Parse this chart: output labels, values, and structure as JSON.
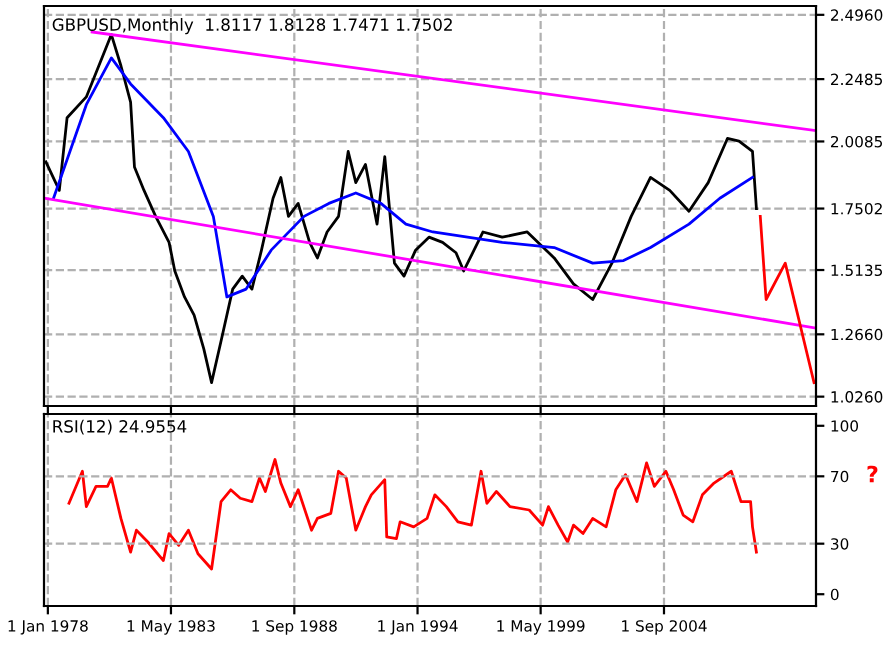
{
  "chart_data": [
    {
      "type": "line",
      "title": "GBPUSD,Monthly  1.8117 1.8128 1.7471 1.7502",
      "xlim": [
        "1977-11",
        "2011-04"
      ],
      "ylim": [
        0.99,
        2.53
      ],
      "xticks": [
        {
          "value": "1978-01-01",
          "label": null
        },
        {
          "value": "1983-05-01",
          "label": null
        },
        {
          "value": "1988-09-01",
          "label": null
        },
        {
          "value": "1994-01-01",
          "label": null
        },
        {
          "value": "1999-05-01",
          "label": null
        },
        {
          "value": "2004-09-01",
          "label": null
        }
      ],
      "yticks": [
        {
          "value": 2.496,
          "label": "2.4960"
        },
        {
          "value": 2.2485,
          "label": "2.2485"
        },
        {
          "value": 2.0085,
          "label": "2.0085"
        },
        {
          "value": 1.7502,
          "label": "1.7502"
        },
        {
          "value": 1.5135,
          "label": "1.5135"
        },
        {
          "value": 1.266,
          "label": "1.2660"
        },
        {
          "value": 1.026,
          "label": "1.0260"
        }
      ],
      "tick_labels": "y",
      "grid": true,
      "series": [
        {
          "color": "#000000",
          "x": [
            "1977-12",
            "1978-07",
            "1978-11",
            "1979-09",
            "1980-10",
            "1981-03",
            "1981-08",
            "1981-10",
            "1982-03",
            "1982-09",
            "1983-04",
            "1983-07",
            "1983-12",
            "1984-05",
            "1984-10",
            "1985-02",
            "1985-07",
            "1986-01",
            "1986-06",
            "1986-11",
            "1987-04",
            "1987-10",
            "1988-02",
            "1988-06",
            "1988-11",
            "1989-05",
            "1989-09",
            "1990-02",
            "1990-08",
            "1991-01",
            "1991-05",
            "1991-10",
            "1992-04",
            "1992-08",
            "1993-01",
            "1993-06",
            "1993-12",
            "1994-07",
            "1995-02",
            "1995-09",
            "1996-01",
            "1996-11",
            "1997-09",
            "1998-10",
            "1999-12",
            "2000-10",
            "2001-08",
            "2002-06",
            "2003-04",
            "2004-02",
            "2004-12",
            "2005-10",
            "2006-08",
            "2007-06",
            "2007-12",
            "2008-07",
            "2008-09"
          ],
          "values": [
            1.93,
            1.82,
            2.1,
            2.18,
            2.42,
            2.3,
            2.16,
            1.91,
            1.82,
            1.72,
            1.62,
            1.51,
            1.41,
            1.34,
            1.21,
            1.08,
            1.24,
            1.44,
            1.49,
            1.44,
            1.59,
            1.79,
            1.87,
            1.72,
            1.77,
            1.62,
            1.56,
            1.66,
            1.72,
            1.97,
            1.85,
            1.92,
            1.69,
            1.95,
            1.54,
            1.49,
            1.59,
            1.64,
            1.62,
            1.58,
            1.51,
            1.66,
            1.64,
            1.66,
            1.56,
            1.46,
            1.4,
            1.54,
            1.72,
            1.87,
            1.82,
            1.74,
            1.85,
            2.02,
            2.01,
            1.97,
            1.75
          ]
        },
        {
          "color": "#0000ff",
          "x": [
            "1978-04",
            "1979-09",
            "1980-10",
            "1981-08",
            "1983-01",
            "1984-02",
            "1985-03",
            "1985-10",
            "1986-08",
            "1987-09",
            "1989-02",
            "1990-03",
            "1991-05",
            "1992-06",
            "1993-07",
            "1994-09",
            "1997-09",
            "1999-12",
            "2001-08",
            "2002-12",
            "2004-02",
            "2005-10",
            "2007-02",
            "2008-07"
          ],
          "values": [
            1.79,
            2.15,
            2.33,
            2.23,
            2.1,
            1.97,
            1.72,
            1.41,
            1.44,
            1.59,
            1.72,
            1.77,
            1.81,
            1.77,
            1.69,
            1.66,
            1.62,
            1.6,
            1.54,
            1.55,
            1.6,
            1.69,
            1.79,
            1.87
          ]
        },
        {
          "color": "#ff00ff",
          "x": [
            "1979-12",
            "2011-04"
          ],
          "values": [
            2.43,
            2.05
          ]
        },
        {
          "color": "#ff00ff",
          "x": [
            "1977-11",
            "2011-04"
          ],
          "values": [
            1.79,
            1.29
          ]
        },
        {
          "color": "#ff0000",
          "x": [
            "2008-11",
            "2009-02",
            "2009-12",
            "2011-03"
          ],
          "values": [
            1.72,
            1.4,
            1.54,
            1.08
          ]
        }
      ]
    },
    {
      "type": "line",
      "title": "RSI(12) 24.9554",
      "xlim": [
        "1977-11",
        "2011-04"
      ],
      "ylim": [
        -7,
        107
      ],
      "xticks": [
        {
          "value": "1978-01-01",
          "label": "1 Jan 1978"
        },
        {
          "value": "1983-05-01",
          "label": "1 May 1983"
        },
        {
          "value": "1988-09-01",
          "label": "1 Sep 1988"
        },
        {
          "value": "1994-01-01",
          "label": "1 Jan 1994"
        },
        {
          "value": "1999-05-01",
          "label": "1 May 1999"
        },
        {
          "value": "2004-09-01",
          "label": "1 Sep 2004"
        }
      ],
      "yticks": [
        100,
        70,
        30,
        0
      ],
      "grid": "x",
      "ref_lines": [
        {
          "axis": "y",
          "value": 70,
          "color": "#b0b0b0",
          "line_style": "dashed"
        },
        {
          "axis": "y",
          "value": 30,
          "color": "#b0b0b0",
          "line_style": "dashed"
        }
      ],
      "annotations": [
        "?"
      ],
      "series": [
        {
          "color": "#ff0000",
          "x": [
            "1978-12",
            "1979-07",
            "1979-09",
            "1980-02",
            "1980-08",
            "1980-10",
            "1981-03",
            "1981-08",
            "1981-11",
            "1982-05",
            "1983-01",
            "1983-04",
            "1983-09",
            "1984-02",
            "1984-07",
            "1985-02",
            "1985-07",
            "1985-12",
            "1986-05",
            "1986-11",
            "1987-03",
            "1987-06",
            "1987-11",
            "1988-02",
            "1988-07",
            "1988-11",
            "1989-06",
            "1989-09",
            "1990-04",
            "1990-08",
            "1990-12",
            "1991-05",
            "1991-10",
            "1992-01",
            "1992-08",
            "1992-09",
            "1993-02",
            "1993-04",
            "1993-11",
            "1994-06",
            "1994-10",
            "1995-04",
            "1995-10",
            "1996-05",
            "1996-10",
            "1997-01",
            "1997-06",
            "1998-01",
            "1998-11",
            "1999-06",
            "1999-09",
            "2000-02",
            "2000-07",
            "2000-10",
            "2001-03",
            "2001-08",
            "2002-03",
            "2002-08",
            "2003-01",
            "2003-07",
            "2003-12",
            "2004-04",
            "2004-10",
            "2005-02",
            "2005-07",
            "2005-12",
            "2006-05",
            "2006-11",
            "2007-08",
            "2008-01",
            "2008-06",
            "2008-07",
            "2008-09"
          ],
          "values": [
            54,
            73,
            52,
            64,
            64,
            69,
            45,
            25,
            38,
            31,
            20,
            36,
            29,
            38,
            24,
            15,
            55,
            62,
            57,
            55,
            69,
            61,
            80,
            66,
            52,
            62,
            38,
            45,
            48,
            73,
            69,
            38,
            52,
            59,
            68,
            34,
            33,
            43,
            40,
            45,
            59,
            52,
            43,
            41,
            73,
            54,
            61,
            52,
            50,
            41,
            52,
            41,
            31,
            41,
            36,
            45,
            40,
            62,
            71,
            55,
            78,
            64,
            73,
            62,
            47,
            43,
            59,
            66,
            73,
            55,
            55,
            40,
            24.9554
          ]
        }
      ]
    }
  ]
}
